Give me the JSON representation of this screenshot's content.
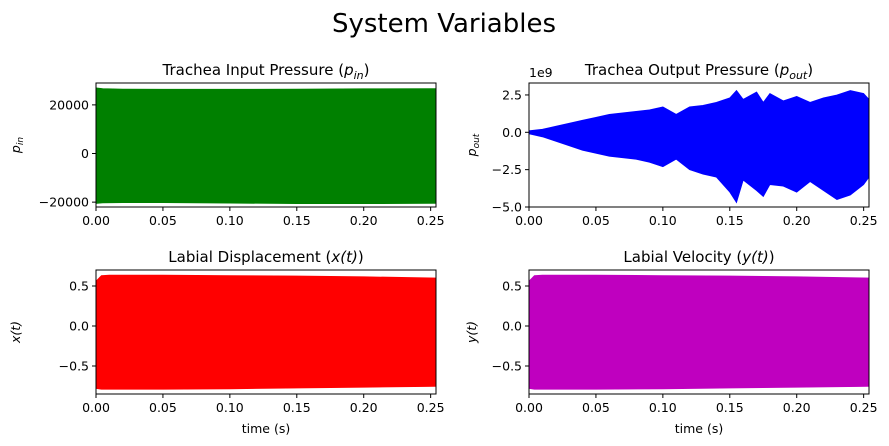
{
  "figure_title": "System Variables",
  "chart_data": [
    {
      "type": "line",
      "title": "Trachea Input Pressure ($p_{in}$)",
      "title_main": "Trachea Input Pressure (",
      "title_sym": "p",
      "title_sub": "in",
      "title_end": ")",
      "xlabel": "",
      "ylabel": "p",
      "ylabel_sub": "in",
      "color": "#008000",
      "xlim": [
        0,
        0.254
      ],
      "ylim": [
        -22000,
        29000
      ],
      "xticks": [
        0.0,
        0.05,
        0.1,
        0.15,
        0.2,
        0.25
      ],
      "xtick_labels": [
        "0.00",
        "0.05",
        "0.10",
        "0.15",
        "0.20",
        "0.25"
      ],
      "yticks": [
        -20000,
        0,
        20000
      ],
      "ytick_labels": [
        "−20000",
        "0",
        "20000"
      ],
      "offset_label": "",
      "series": [
        {
          "x": [
            0.0,
            0.005,
            0.02,
            0.05,
            0.1,
            0.15,
            0.2,
            0.254
          ],
          "upper": [
            27000,
            26700,
            26500,
            26400,
            26400,
            26500,
            26600,
            26700
          ],
          "lower": [
            -20500,
            -20300,
            -20200,
            -20200,
            -20400,
            -20600,
            -20600,
            -20500
          ]
        }
      ]
    },
    {
      "type": "line",
      "title": "Trachea Output Pressure ($p_{out}$)",
      "title_main": "Trachea Output Pressure (",
      "title_sym": "p",
      "title_sub": "out",
      "title_end": ")",
      "xlabel": "",
      "ylabel": "p",
      "ylabel_sub": "out",
      "color": "#0000ff",
      "xlim": [
        0,
        0.254
      ],
      "ylim": [
        -5.0,
        3.3
      ],
      "xticks": [
        0.0,
        0.05,
        0.1,
        0.15,
        0.2,
        0.25
      ],
      "xtick_labels": [
        "0.00",
        "0.05",
        "0.10",
        "0.15",
        "0.20",
        "0.25"
      ],
      "yticks": [
        -5.0,
        -2.5,
        0.0,
        2.5
      ],
      "ytick_labels": [
        "−5.0",
        "−2.5",
        "0.0",
        "2.5"
      ],
      "offset_label": "1e9",
      "series": [
        {
          "x": [
            0.0,
            0.01,
            0.02,
            0.03,
            0.04,
            0.05,
            0.06,
            0.07,
            0.08,
            0.09,
            0.1,
            0.11,
            0.12,
            0.13,
            0.14,
            0.15,
            0.155,
            0.16,
            0.17,
            0.175,
            0.18,
            0.19,
            0.2,
            0.21,
            0.22,
            0.23,
            0.24,
            0.25,
            0.254
          ],
          "upper": [
            0.1,
            0.2,
            0.4,
            0.6,
            0.8,
            1.0,
            1.2,
            1.3,
            1.4,
            1.5,
            1.7,
            1.2,
            1.7,
            1.8,
            2.0,
            2.3,
            2.8,
            2.2,
            2.7,
            2.0,
            2.6,
            2.1,
            2.4,
            2.0,
            2.3,
            2.5,
            2.8,
            2.6,
            2.2
          ],
          "lower": [
            -0.1,
            -0.3,
            -0.6,
            -0.9,
            -1.2,
            -1.4,
            -1.6,
            -1.7,
            -1.8,
            -2.0,
            -2.3,
            -1.8,
            -2.5,
            -2.8,
            -3.0,
            -4.0,
            -4.7,
            -3.2,
            -3.9,
            -4.3,
            -3.5,
            -3.6,
            -4.0,
            -3.3,
            -3.9,
            -4.5,
            -4.2,
            -3.5,
            -3.0
          ]
        }
      ]
    },
    {
      "type": "line",
      "title": "Labial Displacement ($x(t)$)",
      "title_main": "Labial Displacement (",
      "title_sym": "x(t)",
      "title_sub": "",
      "title_end": ")",
      "xlabel": "time (s)",
      "ylabel": "x(t)",
      "ylabel_sub": "",
      "color": "#ff0000",
      "xlim": [
        0,
        0.254
      ],
      "ylim": [
        -0.85,
        0.7
      ],
      "xticks": [
        0.0,
        0.05,
        0.1,
        0.15,
        0.2,
        0.25
      ],
      "xtick_labels": [
        "0.00",
        "0.05",
        "0.10",
        "0.15",
        "0.20",
        "0.25"
      ],
      "yticks": [
        -0.5,
        0.0,
        0.5
      ],
      "ytick_labels": [
        "−0.5",
        "0.0",
        "0.5"
      ],
      "offset_label": "",
      "series": [
        {
          "x": [
            0.0,
            0.004,
            0.01,
            0.05,
            0.1,
            0.15,
            0.2,
            0.254
          ],
          "upper": [
            0.56,
            0.63,
            0.635,
            0.635,
            0.63,
            0.625,
            0.615,
            0.6
          ],
          "lower": [
            -0.78,
            -0.79,
            -0.79,
            -0.79,
            -0.785,
            -0.775,
            -0.765,
            -0.755
          ]
        }
      ]
    },
    {
      "type": "line",
      "title": "Labial Velocity ($y(t)$)",
      "title_main": "Labial Velocity (",
      "title_sym": "y(t)",
      "title_sub": "",
      "title_end": ")",
      "xlabel": "time (s)",
      "ylabel": "y(t)",
      "ylabel_sub": "",
      "color": "#bf00bf",
      "xlim": [
        0,
        0.254
      ],
      "ylim": [
        -0.85,
        0.7
      ],
      "xticks": [
        0.0,
        0.05,
        0.1,
        0.15,
        0.2,
        0.25
      ],
      "xtick_labels": [
        "0.00",
        "0.05",
        "0.10",
        "0.15",
        "0.20",
        "0.25"
      ],
      "yticks": [
        -0.5,
        0.0,
        0.5
      ],
      "ytick_labels": [
        "−0.5",
        "0.0",
        "0.5"
      ],
      "offset_label": "",
      "series": [
        {
          "x": [
            0.0,
            0.004,
            0.01,
            0.05,
            0.1,
            0.15,
            0.2,
            0.254
          ],
          "upper": [
            0.56,
            0.63,
            0.635,
            0.635,
            0.63,
            0.625,
            0.615,
            0.6
          ],
          "lower": [
            -0.78,
            -0.79,
            -0.79,
            -0.79,
            -0.785,
            -0.775,
            -0.765,
            -0.755
          ]
        }
      ]
    }
  ]
}
